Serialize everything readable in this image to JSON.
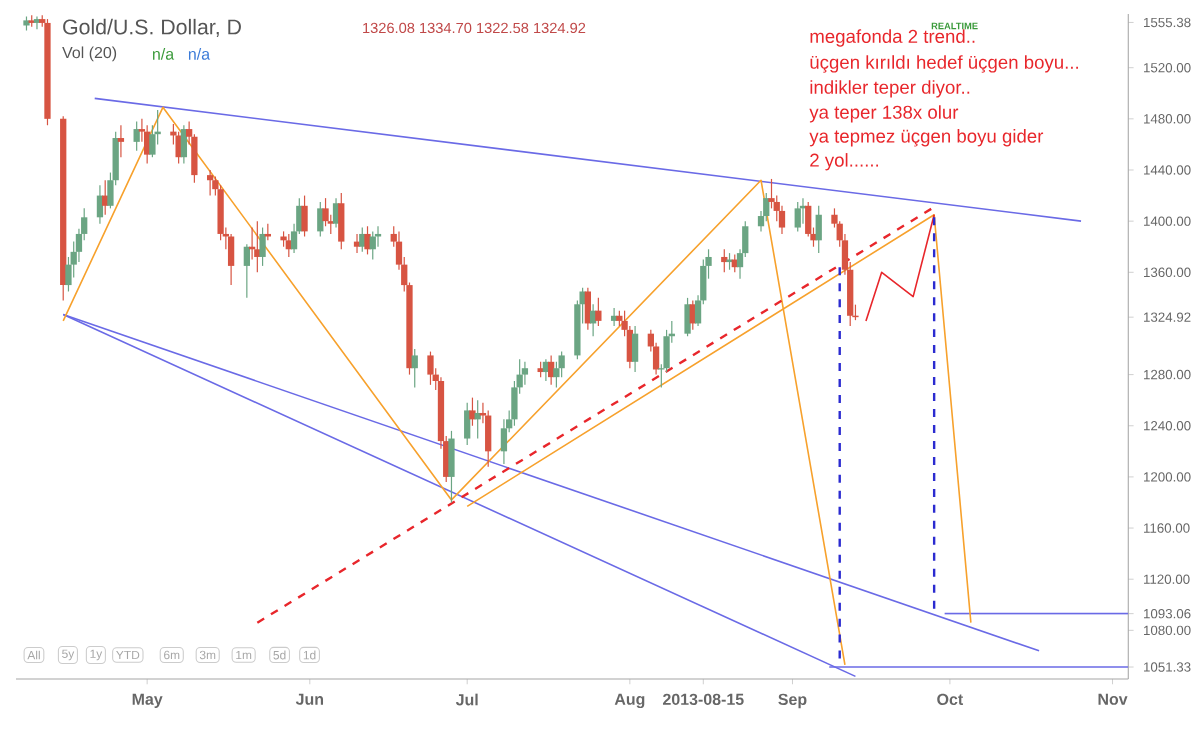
{
  "chart_data": {
    "type": "candlestick",
    "title": "Gold/U.S. Dollar, D",
    "subtitle": "1326.08 1334.70 1322.58 1324.92",
    "annotations": [
      "megafonda 2 trend..",
      "üçgen kırıldı hedef üçgen boyu...",
      "indikler teper diyor..",
      "ya teper 138x olur",
      "ya tepmez üçgen boyu gider",
      "2 yol......",
      "Vol (20)",
      "n/a",
      "n/a",
      "REALTIME",
      "All",
      "5y",
      "1y",
      "YTD",
      "6m",
      "3m",
      "1m",
      "5d",
      "1d"
    ],
    "xlim": [
      "2013-04-06",
      "2013-11-04"
    ],
    "xticks": [
      {
        "value": "2013-05-01",
        "label": "May"
      },
      {
        "value": "2013-06-01",
        "label": "Jun"
      },
      {
        "value": "2013-07-01",
        "label": "Jul"
      },
      {
        "value": "2013-08-01",
        "label": "Aug"
      },
      {
        "value": "2013-08-15",
        "label": "2013-08-15"
      },
      {
        "value": "2013-09-01",
        "label": "Sep"
      },
      {
        "value": "2013-10-01",
        "label": "Oct"
      },
      {
        "value": "2013-11-01",
        "label": "Nov"
      }
    ],
    "ylim": [
      1042,
      1562
    ],
    "yticks": [
      {
        "value": 1051.33,
        "label": "1051.33"
      },
      {
        "value": 1080,
        "label": "1080.00"
      },
      {
        "value": 1093.06,
        "label": "1093.06"
      },
      {
        "value": 1120,
        "label": "1120.00"
      },
      {
        "value": 1160,
        "label": "1160.00"
      },
      {
        "value": 1200,
        "label": "1200.00"
      },
      {
        "value": 1240,
        "label": "1240.00"
      },
      {
        "value": 1280,
        "label": "1280.00"
      },
      {
        "value": 1324.92,
        "label": "1324.92"
      },
      {
        "value": 1360,
        "label": "1360.00"
      },
      {
        "value": 1400,
        "label": "1400.00"
      },
      {
        "value": 1440,
        "label": "1440.00"
      },
      {
        "value": 1480,
        "label": "1480.00"
      },
      {
        "value": 1520,
        "label": "1520.00"
      },
      {
        "value": 1555.38,
        "label": "1555.38"
      }
    ],
    "x": [
      "2013-04-08",
      "2013-04-09",
      "2013-04-10",
      "2013-04-11",
      "2013-04-12",
      "2013-04-15",
      "2013-04-16",
      "2013-04-17",
      "2013-04-18",
      "2013-04-19",
      "2013-04-22",
      "2013-04-23",
      "2013-04-24",
      "2013-04-25",
      "2013-04-26",
      "2013-04-29",
      "2013-04-30",
      "2013-05-01",
      "2013-05-02",
      "2013-05-03",
      "2013-05-06",
      "2013-05-07",
      "2013-05-08",
      "2013-05-09",
      "2013-05-10",
      "2013-05-13",
      "2013-05-14",
      "2013-05-15",
      "2013-05-16",
      "2013-05-17",
      "2013-05-20",
      "2013-05-21",
      "2013-05-22",
      "2013-05-23",
      "2013-05-24",
      "2013-05-27",
      "2013-05-28",
      "2013-05-29",
      "2013-05-30",
      "2013-05-31",
      "2013-06-03",
      "2013-06-04",
      "2013-06-05",
      "2013-06-06",
      "2013-06-07",
      "2013-06-10",
      "2013-06-11",
      "2013-06-12",
      "2013-06-13",
      "2013-06-14",
      "2013-06-17",
      "2013-06-18",
      "2013-06-19",
      "2013-06-20",
      "2013-06-21",
      "2013-06-24",
      "2013-06-25",
      "2013-06-26",
      "2013-06-27",
      "2013-06-28",
      "2013-07-01",
      "2013-07-02",
      "2013-07-03",
      "2013-07-04",
      "2013-07-05",
      "2013-07-08",
      "2013-07-09",
      "2013-07-10",
      "2013-07-11",
      "2013-07-12",
      "2013-07-15",
      "2013-07-16",
      "2013-07-17",
      "2013-07-18",
      "2013-07-19",
      "2013-07-22",
      "2013-07-23",
      "2013-07-24",
      "2013-07-25",
      "2013-07-26",
      "2013-07-29",
      "2013-07-30",
      "2013-07-31",
      "2013-08-01",
      "2013-08-02",
      "2013-08-05",
      "2013-08-06",
      "2013-08-07",
      "2013-08-08",
      "2013-08-09",
      "2013-08-12",
      "2013-08-13",
      "2013-08-14",
      "2013-08-15",
      "2013-08-16",
      "2013-08-19",
      "2013-08-20",
      "2013-08-21",
      "2013-08-22",
      "2013-08-23",
      "2013-08-26",
      "2013-08-27",
      "2013-08-28",
      "2013-08-29",
      "2013-08-30",
      "2013-09-02",
      "2013-09-03",
      "2013-09-04",
      "2013-09-05",
      "2013-09-06",
      "2013-09-09",
      "2013-09-10",
      "2013-09-11",
      "2013-09-12",
      "2013-09-13"
    ],
    "ohlc": [
      [
        1553,
        1560,
        1549,
        1557
      ],
      [
        1557,
        1561,
        1552,
        1555
      ],
      [
        1555,
        1560,
        1550,
        1558
      ],
      [
        1558,
        1561,
        1552,
        1555
      ],
      [
        1555,
        1558,
        1475,
        1480
      ],
      [
        1480,
        1482,
        1338,
        1350
      ],
      [
        1350,
        1372,
        1345,
        1366
      ],
      [
        1366,
        1384,
        1356,
        1376
      ],
      [
        1376,
        1394,
        1368,
        1390
      ],
      [
        1390,
        1410,
        1385,
        1403
      ],
      [
        1403,
        1428,
        1398,
        1420
      ],
      [
        1420,
        1432,
        1405,
        1412
      ],
      [
        1412,
        1438,
        1410,
        1432
      ],
      [
        1432,
        1470,
        1428,
        1465
      ],
      [
        1465,
        1475,
        1450,
        1462
      ],
      [
        1462,
        1478,
        1455,
        1472
      ],
      [
        1472,
        1480,
        1462,
        1470
      ],
      [
        1470,
        1475,
        1445,
        1452
      ],
      [
        1452,
        1475,
        1450,
        1468
      ],
      [
        1468,
        1487,
        1460,
        1470
      ],
      [
        1470,
        1476,
        1460,
        1467
      ],
      [
        1467,
        1470,
        1445,
        1450
      ],
      [
        1450,
        1475,
        1445,
        1472
      ],
      [
        1472,
        1478,
        1460,
        1466
      ],
      [
        1466,
        1468,
        1430,
        1436
      ],
      [
        1436,
        1440,
        1420,
        1432
      ],
      [
        1432,
        1435,
        1420,
        1425
      ],
      [
        1425,
        1428,
        1385,
        1390
      ],
      [
        1390,
        1395,
        1378,
        1388
      ],
      [
        1388,
        1390,
        1350,
        1365
      ],
      [
        1365,
        1382,
        1340,
        1380
      ],
      [
        1380,
        1395,
        1370,
        1378
      ],
      [
        1378,
        1400,
        1360,
        1372
      ],
      [
        1372,
        1395,
        1365,
        1390
      ],
      [
        1390,
        1398,
        1385,
        1388
      ],
      [
        1388,
        1392,
        1380,
        1385
      ],
      [
        1385,
        1390,
        1372,
        1378
      ],
      [
        1378,
        1398,
        1375,
        1392
      ],
      [
        1392,
        1418,
        1390,
        1412
      ],
      [
        1412,
        1420,
        1388,
        1392
      ],
      [
        1392,
        1415,
        1388,
        1410
      ],
      [
        1410,
        1418,
        1396,
        1400
      ],
      [
        1400,
        1405,
        1390,
        1398
      ],
      [
        1398,
        1418,
        1395,
        1414
      ],
      [
        1414,
        1422,
        1378,
        1384
      ],
      [
        1384,
        1390,
        1375,
        1380
      ],
      [
        1380,
        1395,
        1376,
        1390
      ],
      [
        1390,
        1396,
        1374,
        1378
      ],
      [
        1378,
        1392,
        1370,
        1388
      ],
      [
        1388,
        1396,
        1380,
        1390
      ],
      [
        1390,
        1396,
        1380,
        1384
      ],
      [
        1384,
        1392,
        1362,
        1366
      ],
      [
        1366,
        1372,
        1345,
        1350
      ],
      [
        1350,
        1352,
        1280,
        1285
      ],
      [
        1285,
        1300,
        1270,
        1295
      ],
      [
        1295,
        1298,
        1272,
        1280
      ],
      [
        1280,
        1285,
        1268,
        1275
      ],
      [
        1275,
        1278,
        1222,
        1228
      ],
      [
        1228,
        1232,
        1196,
        1200
      ],
      [
        1200,
        1236,
        1180,
        1230
      ],
      [
        1230,
        1258,
        1225,
        1252
      ],
      [
        1252,
        1262,
        1240,
        1245
      ],
      [
        1245,
        1260,
        1230,
        1250
      ],
      [
        1250,
        1258,
        1242,
        1248
      ],
      [
        1248,
        1252,
        1208,
        1220
      ],
      [
        1220,
        1245,
        1210,
        1238
      ],
      [
        1238,
        1252,
        1235,
        1245
      ],
      [
        1245,
        1275,
        1240,
        1270
      ],
      [
        1270,
        1292,
        1265,
        1280
      ],
      [
        1280,
        1290,
        1272,
        1285
      ],
      [
        1285,
        1290,
        1278,
        1282
      ],
      [
        1282,
        1292,
        1275,
        1290
      ],
      [
        1290,
        1295,
        1272,
        1278
      ],
      [
        1278,
        1290,
        1270,
        1285
      ],
      [
        1285,
        1298,
        1278,
        1295
      ],
      [
        1295,
        1338,
        1292,
        1335
      ],
      [
        1335,
        1348,
        1320,
        1345
      ],
      [
        1345,
        1348,
        1315,
        1320
      ],
      [
        1320,
        1335,
        1310,
        1330
      ],
      [
        1330,
        1340,
        1318,
        1322
      ],
      [
        1322,
        1332,
        1318,
        1326
      ],
      [
        1326,
        1330,
        1318,
        1322
      ],
      [
        1322,
        1330,
        1310,
        1315
      ],
      [
        1315,
        1318,
        1285,
        1290
      ],
      [
        1290,
        1318,
        1282,
        1312
      ],
      [
        1312,
        1315,
        1298,
        1302
      ],
      [
        1302,
        1305,
        1280,
        1284
      ],
      [
        1284,
        1288,
        1270,
        1285
      ],
      [
        1285,
        1315,
        1282,
        1310
      ],
      [
        1310,
        1322,
        1305,
        1312
      ],
      [
        1312,
        1340,
        1310,
        1335
      ],
      [
        1335,
        1338,
        1315,
        1320
      ],
      [
        1320,
        1342,
        1318,
        1338
      ],
      [
        1338,
        1370,
        1335,
        1365
      ],
      [
        1365,
        1378,
        1355,
        1372
      ],
      [
        1372,
        1378,
        1360,
        1368
      ],
      [
        1368,
        1375,
        1362,
        1370
      ],
      [
        1370,
        1374,
        1360,
        1364
      ],
      [
        1364,
        1378,
        1355,
        1375
      ],
      [
        1375,
        1400,
        1372,
        1396
      ],
      [
        1396,
        1408,
        1392,
        1404
      ],
      [
        1404,
        1422,
        1400,
        1418
      ],
      [
        1418,
        1433,
        1410,
        1415
      ],
      [
        1415,
        1420,
        1400,
        1408
      ],
      [
        1408,
        1412,
        1390,
        1395
      ],
      [
        1395,
        1415,
        1392,
        1410
      ],
      [
        1410,
        1418,
        1398,
        1412
      ],
      [
        1412,
        1415,
        1388,
        1390
      ],
      [
        1390,
        1395,
        1380,
        1385
      ],
      [
        1385,
        1412,
        1375,
        1405
      ],
      [
        1405,
        1410,
        1395,
        1398
      ],
      [
        1398,
        1400,
        1380,
        1385
      ],
      [
        1385,
        1390,
        1358,
        1362
      ],
      [
        1362,
        1368,
        1318,
        1326
      ],
      [
        1326.08,
        1334.7,
        1322.58,
        1324.92
      ]
    ],
    "series": [
      {
        "type": "line",
        "color": "#6a6ae6",
        "line_style": "solid",
        "x": [
          "2013-04-21",
          "2013-10-26"
        ],
        "values": [
          1496,
          1400
        ]
      },
      {
        "type": "line",
        "color": "#6a6ae6",
        "line_style": "solid",
        "x": [
          "2013-04-15",
          "2013-10-18"
        ],
        "values": [
          1327,
          1064
        ]
      },
      {
        "type": "line",
        "color": "#6a6ae6",
        "line_style": "solid",
        "x": [
          "2013-04-15",
          "2013-09-13"
        ],
        "values": [
          1327,
          1044
        ]
      },
      {
        "type": "line",
        "color": "#6a6ae6",
        "line_style": "solid",
        "x": [
          "2013-09-30",
          "2013-11-04"
        ],
        "values": [
          1093.06,
          1093.06
        ]
      },
      {
        "type": "line",
        "color": "#6a6ae6",
        "line_style": "solid",
        "x": [
          "2013-09-08",
          "2013-11-04"
        ],
        "values": [
          1051.33,
          1051.33
        ]
      },
      {
        "type": "line",
        "color": "#f7a12c",
        "line_style": "solid",
        "x": [
          "2013-04-15",
          "2013-05-04",
          "2013-06-28",
          "2013-08-26",
          "2013-09-11"
        ],
        "values": [
          1322,
          1489,
          1182,
          1432,
          1053
        ]
      },
      {
        "type": "line",
        "color": "#f7a12c",
        "line_style": "solid",
        "x": [
          "2013-07-01",
          "2013-09-28",
          "2013-10-05"
        ],
        "values": [
          1177,
          1405,
          1086
        ]
      },
      {
        "type": "line",
        "color": "#e8262b",
        "line_style": "dashed",
        "x": [
          "2013-05-22",
          "2013-09-28"
        ],
        "values": [
          1086,
          1411
        ]
      },
      {
        "type": "line",
        "color": "#e8262b",
        "line_style": "solid",
        "x": [
          "2013-09-15",
          "2013-09-18",
          "2013-09-24",
          "2013-09-28"
        ],
        "values": [
          1322,
          1360,
          1341,
          1405
        ]
      },
      {
        "type": "line",
        "color": "#2b2bd0",
        "line_style": "dashed",
        "x": [
          "2013-09-10",
          "2013-09-10"
        ],
        "values": [
          1364,
          1053
        ]
      },
      {
        "type": "line",
        "color": "#2b2bd0",
        "line_style": "dashed",
        "x": [
          "2013-09-28",
          "2013-09-28"
        ],
        "values": [
          1403,
          1094
        ]
      }
    ]
  }
}
